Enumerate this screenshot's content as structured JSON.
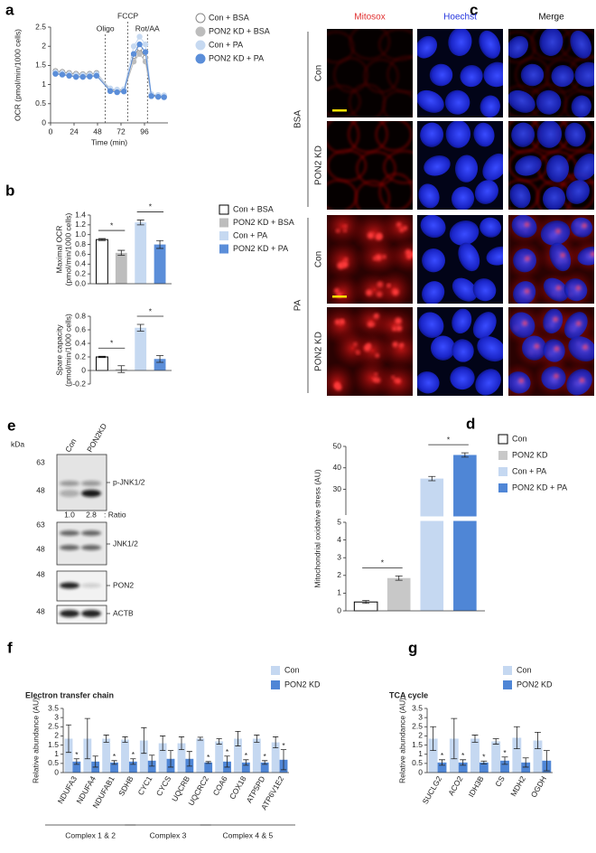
{
  "panel_labels": [
    "a",
    "b",
    "c",
    "d",
    "e",
    "f",
    "g"
  ],
  "chart_data": [
    {
      "type": "line",
      "x_label": "Time (min)",
      "y_label": "OCR (pmol/min/1000 cells)",
      "x": [
        5,
        12,
        19,
        26,
        33,
        40,
        47,
        61,
        68,
        75,
        85,
        91,
        97,
        103,
        110,
        116
      ],
      "xlim": [
        0,
        120
      ],
      "xticks": [
        0,
        24,
        48,
        72,
        96
      ],
      "ylim": [
        0,
        2.5
      ],
      "yticks": [
        0,
        0.5,
        1,
        1.5,
        2,
        2.5
      ],
      "events": [
        {
          "x": 56,
          "label": "Oligo"
        },
        {
          "x": 79,
          "label": "FCCP"
        },
        {
          "x": 99,
          "label": "Rot/AA"
        }
      ],
      "series": [
        {
          "name": "Con + BSA",
          "color": "#ffffff",
          "edgecolor": "#888888",
          "values": [
            1.35,
            1.33,
            1.3,
            1.28,
            1.27,
            1.28,
            1.3,
            0.88,
            0.85,
            0.86,
            1.75,
            1.95,
            1.7,
            0.72,
            0.72,
            0.7
          ]
        },
        {
          "name": "PON2 KD + BSA",
          "color": "#bdbdbd",
          "values": [
            1.3,
            1.28,
            1.25,
            1.22,
            1.22,
            1.23,
            1.25,
            0.85,
            0.82,
            0.83,
            1.6,
            1.8,
            1.6,
            0.7,
            0.68,
            0.68
          ]
        },
        {
          "name": "Con + PA",
          "color": "#c6d9f1",
          "values": [
            1.32,
            1.3,
            1.27,
            1.25,
            1.25,
            1.26,
            1.28,
            0.9,
            0.87,
            0.88,
            2.0,
            2.25,
            2.05,
            0.75,
            0.73,
            0.72
          ]
        },
        {
          "name": "PON2 KD + PA",
          "color": "#5b8ed9",
          "values": [
            1.28,
            1.26,
            1.23,
            1.2,
            1.2,
            1.21,
            1.23,
            0.83,
            0.8,
            0.82,
            1.8,
            2.05,
            1.85,
            0.7,
            0.68,
            0.67
          ]
        }
      ]
    },
    {
      "type": "bar",
      "y_label": [
        "Maximal OCR",
        "(pmol/min/1000 cells)"
      ],
      "categories": [
        null
      ],
      "ylim": [
        0,
        1.4
      ],
      "yticks": [
        {
          "value": 0,
          "label": "0.0"
        },
        0.2,
        0.4,
        0.6,
        0.8,
        {
          "value": 1,
          "label": "1.0"
        },
        1.2,
        1.4
      ],
      "annotations": [
        "*",
        "*"
      ],
      "series": [
        {
          "name": "Con + BSA",
          "color": "#ffffff",
          "edgecolor": "#000000",
          "values": [
            0.9
          ],
          "errors": [
            0.02
          ]
        },
        {
          "name": "PON2 KD + BSA",
          "color": "#bdbdbd",
          "values": [
            0.63
          ],
          "errors": [
            0.05
          ]
        },
        {
          "name": "Con + PA",
          "color": "#c6d9f1",
          "values": [
            1.25
          ],
          "errors": [
            0.05
          ]
        },
        {
          "name": "PON2 KD + PA",
          "color": "#5b8ed9",
          "values": [
            0.8
          ],
          "errors": [
            0.08
          ]
        }
      ]
    },
    {
      "type": "bar",
      "y_label": [
        "Spare capacity",
        "(pmol/min/1000 cells)"
      ],
      "categories": [
        null
      ],
      "ylim": [
        -0.2,
        0.8
      ],
      "yticks": [
        -0.2,
        0,
        0.2,
        0.4,
        0.6,
        0.8
      ],
      "annotations": [
        "*",
        "*"
      ],
      "series": [
        {
          "color": "#ffffff",
          "edgecolor": "#000000",
          "values": [
            0.2
          ],
          "errors": [
            0.01
          ]
        },
        {
          "color": "#bdbdbd",
          "values": [
            0.02
          ],
          "errors": [
            0.05
          ]
        },
        {
          "color": "#c6d9f1",
          "values": [
            0.63
          ],
          "errors": [
            0.05
          ]
        },
        {
          "color": "#5b8ed9",
          "values": [
            0.17
          ],
          "errors": [
            0.05
          ]
        }
      ]
    },
    {
      "type": "bar",
      "y_label": "Mitochondrial oxidative stress (AU)",
      "categories": [
        null
      ],
      "ylim": [
        0,
        50
      ],
      "ybreak": [
        5,
        18
      ],
      "yticks": [
        0,
        1,
        2,
        3,
        4,
        5,
        30,
        40,
        50
      ],
      "annotations": [
        "*",
        "*"
      ],
      "series": [
        {
          "name": "Con",
          "color": "#ffffff",
          "edgecolor": "#000000",
          "values": [
            0.5
          ],
          "errors": [
            0.08
          ]
        },
        {
          "name": "PON2 KD",
          "color": "#c8c8c8",
          "values": [
            1.85
          ],
          "errors": [
            0.12
          ]
        },
        {
          "name": "Con + PA",
          "color": "#c5d8f1",
          "values": [
            35
          ],
          "errors": [
            1
          ]
        },
        {
          "name": "PON2 KD + PA",
          "color": "#4f86d6",
          "values": [
            46
          ],
          "errors": [
            1
          ]
        }
      ]
    },
    {
      "type": "bar",
      "title": "Electron transfer chain",
      "y_label": "Relative abundance (AU)",
      "categories": [
        "NDUFA3",
        "NDUFA4",
        "NDUFAB1",
        "SDHB",
        "CYC1",
        "CYCS",
        "UQCRB",
        "UQCRC2",
        "COA6",
        "COX18",
        "ATP5PD",
        "ATP6V1E2"
      ],
      "groups": [
        "Complex 1 & 2",
        "Complex 3",
        "Complex 4 & 5"
      ],
      "ylim": [
        0,
        3.5
      ],
      "yticks": [
        0,
        0.5,
        1,
        1.5,
        2,
        2.5,
        3,
        3.5
      ],
      "annotations": [
        "*",
        null,
        "*",
        "*",
        null,
        null,
        null,
        "*",
        "*",
        "*",
        "*",
        "*"
      ],
      "series": [
        {
          "name": "Con",
          "color": "#c5d8f1",
          "values": [
            1.85,
            1.85,
            1.85,
            1.8,
            1.75,
            1.6,
            1.6,
            1.85,
            1.7,
            1.85,
            1.85,
            1.65
          ],
          "errors": [
            0.75,
            1.1,
            0.2,
            0.15,
            0.7,
            0.4,
            0.35,
            0.08,
            0.15,
            0.4,
            0.2,
            0.3
          ]
        },
        {
          "name": "PON2 KD",
          "color": "#4f86d6",
          "values": [
            0.6,
            0.6,
            0.55,
            0.6,
            0.65,
            0.75,
            0.75,
            0.55,
            0.6,
            0.55,
            0.55,
            0.7
          ],
          "errors": [
            0.15,
            0.3,
            0.1,
            0.15,
            0.3,
            0.45,
            0.4,
            0.05,
            0.3,
            0.15,
            0.1,
            0.55
          ]
        }
      ]
    },
    {
      "type": "bar",
      "title": "TCA cycle",
      "y_label": "Relative abundance (AU)",
      "categories": [
        "SUCLG2",
        "ACO2",
        "IDH3B",
        "CS",
        "MDH2",
        "OGDH"
      ],
      "ylim": [
        0,
        3.5
      ],
      "yticks": [
        0,
        0.5,
        1,
        1.5,
        2,
        2.5,
        3,
        3.5
      ],
      "annotations": [
        "*",
        "*",
        "*",
        "*",
        null,
        null
      ],
      "series": [
        {
          "name": "Con",
          "color": "#c5d8f1",
          "values": [
            1.85,
            1.85,
            1.85,
            1.7,
            1.9,
            1.75
          ],
          "errors": [
            0.65,
            1.1,
            0.2,
            0.15,
            0.6,
            0.45
          ]
        },
        {
          "name": "PON2 KD",
          "color": "#4f86d6",
          "values": [
            0.55,
            0.55,
            0.55,
            0.65,
            0.55,
            0.65
          ],
          "errors": [
            0.15,
            0.15,
            0.08,
            0.2,
            0.25,
            0.55
          ]
        }
      ]
    }
  ],
  "microscopy": {
    "columns": [
      "Mitosox",
      "Hoechst",
      "Merge"
    ],
    "groups": [
      {
        "label": "BSA",
        "rows": [
          "Con",
          "PON2 KD"
        ]
      },
      {
        "label": "PA",
        "rows": [
          "Con",
          "PON2 KD"
        ]
      }
    ]
  },
  "western_blot": {
    "unit": "kDa",
    "lanes": [
      "Con",
      "PON2KD"
    ],
    "blots": [
      {
        "label": "p-JNK1/2",
        "markers": [
          "63",
          "48"
        ]
      },
      {
        "label": "JNK1/2",
        "markers": [
          "63",
          "48"
        ]
      },
      {
        "label": "PON2",
        "markers": [
          "48"
        ]
      },
      {
        "label": "ACTB",
        "markers": [
          "48"
        ]
      }
    ],
    "ratio": {
      "values": [
        "1.0",
        "2.8"
      ],
      "label": ": Ratio"
    }
  }
}
